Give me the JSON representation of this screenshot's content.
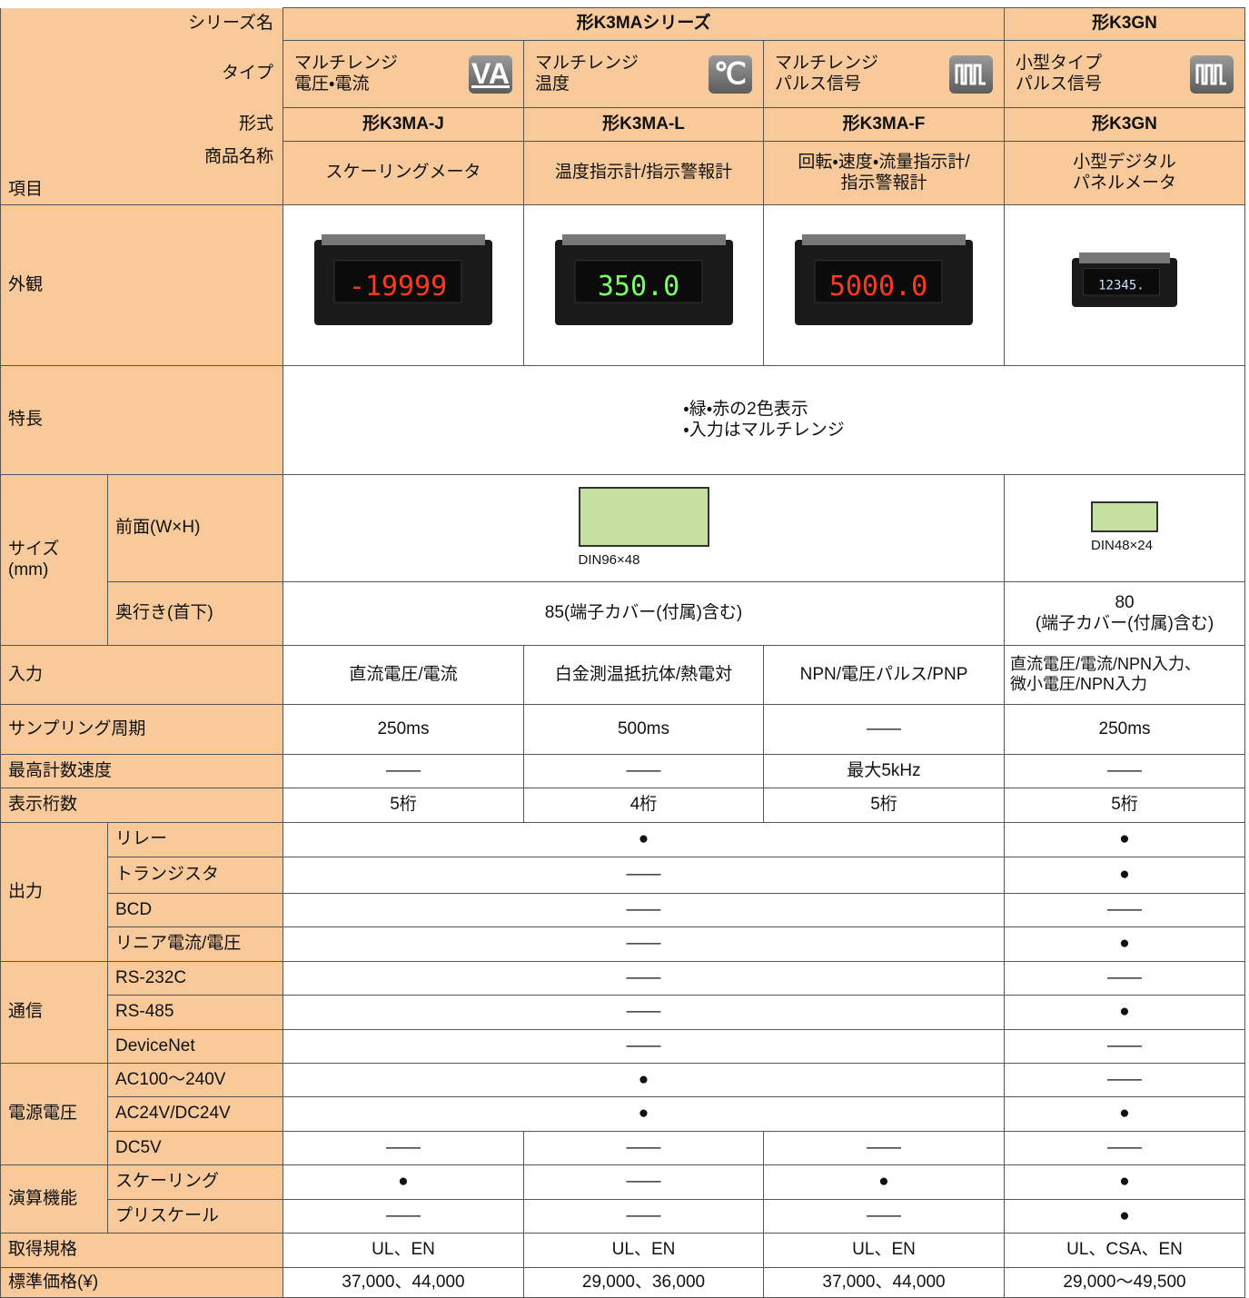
{
  "header": {
    "corner_item": "項目",
    "rows": [
      {
        "label": "シリーズ名",
        "cells": [
          "形K3MAシリーズ",
          "形K3GN"
        ]
      },
      {
        "label": "タイプ",
        "cells": [
          {
            "lines": [
              "マルチレンジ",
              "電圧・電流"
            ],
            "icon": "VA"
          },
          {
            "lines": [
              "マルチレンジ",
              "温度"
            ],
            "icon": "℃"
          },
          {
            "lines": [
              "マルチレンジ",
              "パルス信号"
            ]
          },
          {
            "lines": [
              "小型タイプ",
              "パルス信号"
            ]
          }
        ]
      },
      {
        "label": "形式",
        "cells": [
          "形K3MA-J",
          "形K3MA-L",
          "形K3MA-F",
          "形K3GN"
        ]
      },
      {
        "label": "商品名称",
        "cells": [
          [
            "スケーリングメータ"
          ],
          [
            "温度指示計/指示警報計"
          ],
          [
            "回転・速度・流量指示計/",
            "指示警報計"
          ],
          [
            "小型デジタル",
            "パネルメータ"
          ]
        ]
      }
    ]
  },
  "body": {
    "appearance": {
      "label": "外観",
      "displays": [
        "-19999",
        "350.0",
        "5000.0",
        "12345."
      ]
    },
    "features": {
      "label": "特長",
      "lines": [
        "・緑・赤の2色表示",
        "・入力はマルチレンジ"
      ]
    },
    "size": {
      "label": [
        "サイズ",
        "(mm)"
      ],
      "front": {
        "label": "前面(W×H)",
        "cells": [
          "DIN96×48",
          "DIN48×24"
        ]
      },
      "depth": {
        "label": "奥行き(首下)",
        "cells": [
          [
            "85(端子カバー(付属)含む)"
          ],
          [
            "80",
            "(端子カバー(付属)含む)"
          ]
        ]
      }
    },
    "singles_top": [
      {
        "label": "入力",
        "cells": [
          "直流電圧/電流",
          "白金測温抵抗体/熱電対",
          "NPN/電圧パルス/PNP",
          [
            "直流電圧/電流/NPN入力、",
            "微小電圧/NPN入力"
          ]
        ]
      },
      {
        "label": "サンプリング周期",
        "cells": [
          "250ms",
          "500ms",
          "——",
          "250ms"
        ]
      },
      {
        "label": "最高計数速度",
        "cells": [
          "——",
          "——",
          "最大5kHz",
          "——"
        ]
      },
      {
        "label": "表示桁数",
        "cells": [
          "5桁",
          "4桁",
          "5桁",
          "5桁"
        ]
      }
    ],
    "groups": [
      {
        "label": "出力",
        "rows": [
          {
            "label": "リレー",
            "cells": [
              "●",
              "●"
            ]
          },
          {
            "label": "トランジスタ",
            "cells": [
              "——",
              "●"
            ]
          },
          {
            "label": "BCD",
            "cells": [
              "——",
              "——"
            ]
          },
          {
            "label": "リニア電流/電圧",
            "cells": [
              "——",
              "●"
            ]
          }
        ]
      },
      {
        "label": "通信",
        "rows": [
          {
            "label": "RS-232C",
            "cells": [
              "——",
              "——"
            ]
          },
          {
            "label": "RS-485",
            "cells": [
              "——",
              "●"
            ]
          },
          {
            "label": "DeviceNet",
            "cells": [
              "——",
              "——"
            ]
          }
        ]
      },
      {
        "label": "電源電圧",
        "rows": [
          {
            "label": "AC100〜240V",
            "cells": [
              "●",
              "——"
            ]
          },
          {
            "label": "AC24V/DC24V",
            "cells": [
              "●",
              "●"
            ]
          },
          {
            "label": "DC5V",
            "cells": [
              "——",
              "——",
              "——",
              "——"
            ]
          }
        ]
      },
      {
        "label": "演算機能",
        "rows": [
          {
            "label": "スケーリング",
            "cells": [
              "●",
              "——",
              "●",
              "●"
            ]
          },
          {
            "label": "プリスケール",
            "cells": [
              "——",
              "——",
              "——",
              "●"
            ]
          }
        ]
      }
    ],
    "singles_bottom": [
      {
        "label": "取得規格",
        "cells": [
          "UL、EN",
          "UL、EN",
          "UL、EN",
          "UL、CSA、EN"
        ]
      },
      {
        "label": "標準価格(¥)",
        "cells": [
          "37,000、44,000",
          "29,000、36,000",
          "37,000、44,000",
          "29,000〜49,500"
        ]
      }
    ]
  }
}
